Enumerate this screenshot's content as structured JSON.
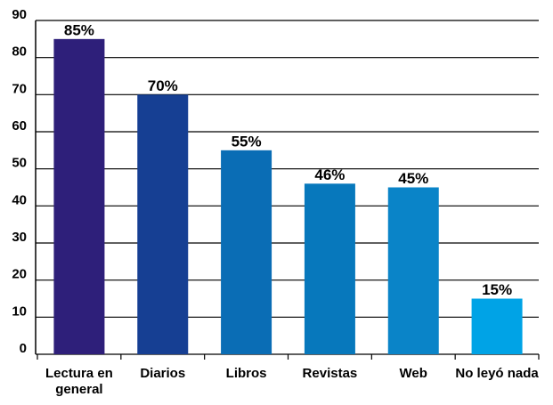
{
  "chart_data": {
    "type": "bar",
    "categories": [
      "Lectura en general",
      "Diarios",
      "Libros",
      "Revistas",
      "Web",
      "No leyó nada"
    ],
    "values": [
      85,
      70,
      55,
      46,
      45,
      15
    ],
    "value_labels": [
      "85%",
      "70%",
      "55%",
      "46%",
      "45%",
      "15%"
    ],
    "colors": [
      "#2e1f7a",
      "#163f93",
      "#0a6db5",
      "#0778bc",
      "#0a84c8",
      "#00a3e6"
    ],
    "ylim": [
      0,
      90
    ],
    "yticks": [
      0,
      10,
      20,
      30,
      40,
      50,
      60,
      70,
      80,
      90
    ],
    "grid": true
  }
}
